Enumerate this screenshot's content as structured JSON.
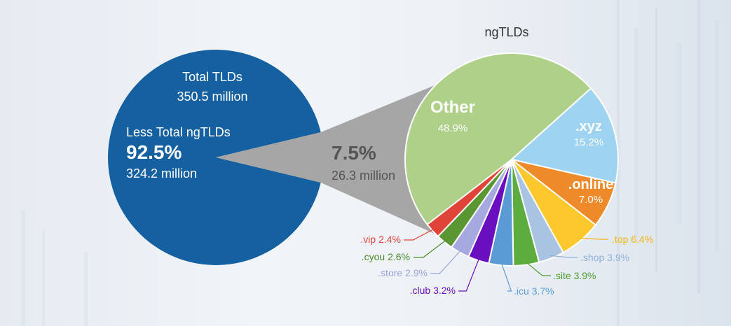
{
  "chart_data": [
    {
      "type": "pie",
      "title": "",
      "total_label": "Total TLDs",
      "total_value": "350.5 million",
      "slices": [
        {
          "name": "Less Total ngTLDs",
          "percent": 92.5,
          "display_pct": "92.5%",
          "value_label": "324.2 million",
          "color": "#1560a0"
        },
        {
          "name": "ngTLDs",
          "percent": 7.5,
          "display_pct": "7.5%",
          "value_label": "26.3 million",
          "color": "#a6a6a6"
        }
      ]
    },
    {
      "type": "pie",
      "title": "ngTLDs",
      "slices": [
        {
          "name": "Other",
          "percent": 48.9,
          "display_pct": "48.9%",
          "color": "#aed089",
          "label_color": "#ffffff"
        },
        {
          "name": ".xyz",
          "percent": 15.2,
          "display_pct": "15.2%",
          "color": "#9ed3f2",
          "label_color": "#ffffff"
        },
        {
          "name": ".online",
          "percent": 7.0,
          "display_pct": "7.0%",
          "color": "#ee8a2a",
          "label_color": "#ffffff"
        },
        {
          "name": ".top",
          "percent": 6.4,
          "display_pct": "6.4%",
          "color": "#fcc82e",
          "label_color": "#f2b517"
        },
        {
          "name": ".shop",
          "percent": 3.9,
          "display_pct": "3.9%",
          "color": "#a9c3e2",
          "label_color": "#8fb0d8"
        },
        {
          "name": ".site",
          "percent": 3.9,
          "display_pct": "3.9%",
          "color": "#5cad3e",
          "label_color": "#4f9d33"
        },
        {
          "name": ".icu",
          "percent": 3.7,
          "display_pct": "3.7%",
          "color": "#5b9bd5",
          "label_color": "#5b9bd5"
        },
        {
          "name": ".club",
          "percent": 3.2,
          "display_pct": "3.2%",
          "color": "#6a0fbf",
          "label_color": "#6a0fbf"
        },
        {
          "name": ".store",
          "percent": 2.9,
          "display_pct": "2.9%",
          "color": "#a6a8e0",
          "label_color": "#9aa3dc"
        },
        {
          "name": ".cyou",
          "percent": 2.6,
          "display_pct": "2.6%",
          "color": "#5a9632",
          "label_color": "#4d8a2a"
        },
        {
          "name": ".vip",
          "percent": 2.4,
          "display_pct": "2.4%",
          "color": "#e04438",
          "label_color": "#e04438"
        }
      ]
    }
  ]
}
